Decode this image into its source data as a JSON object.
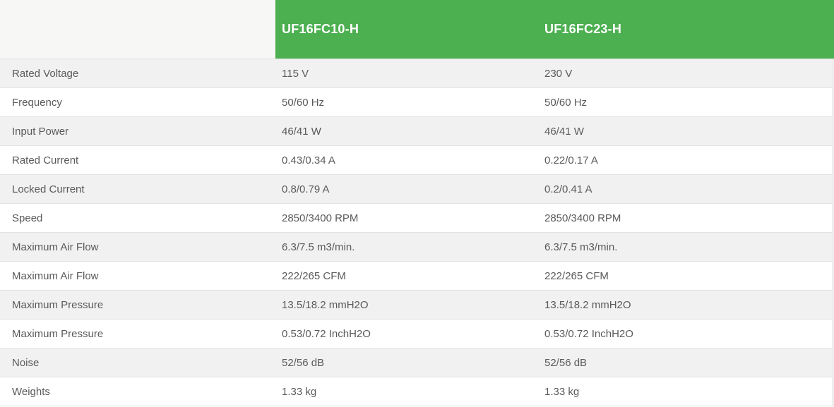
{
  "theme": {
    "header_green": "#4CAF50",
    "header_text_color": "#ffffff",
    "stripe_bg": "#f1f1f1",
    "corner_bg": "#f7f7f6",
    "body_text_color": "#595a5c",
    "divider_color": "#e2e2e2"
  },
  "table": {
    "columns": [
      "",
      "UF16FC10-H",
      "UF16FC23-H"
    ],
    "rows": [
      {
        "label": "Rated Voltage",
        "values": [
          "115 V",
          "230 V"
        ]
      },
      {
        "label": "Frequency",
        "values": [
          "50/60 Hz",
          "50/60 Hz"
        ]
      },
      {
        "label": "Input Power",
        "values": [
          "46/41 W",
          "46/41 W"
        ]
      },
      {
        "label": "Rated Current",
        "values": [
          "0.43/0.34 A",
          "0.22/0.17 A"
        ]
      },
      {
        "label": "Locked Current",
        "values": [
          "0.8/0.79 A",
          "0.2/0.41 A"
        ]
      },
      {
        "label": "Speed",
        "values": [
          "2850/3400 RPM",
          "2850/3400 RPM"
        ]
      },
      {
        "label": "Maximum Air Flow",
        "values": [
          "6.3/7.5 m3/min.",
          "6.3/7.5 m3/min."
        ]
      },
      {
        "label": "Maximum Air Flow",
        "values": [
          "222/265 CFM",
          "222/265 CFM"
        ]
      },
      {
        "label": "Maximum Pressure",
        "values": [
          "13.5/18.2 mmH2O",
          "13.5/18.2 mmH2O"
        ]
      },
      {
        "label": "Maximum Pressure",
        "values": [
          "0.53/0.72 InchH2O",
          "0.53/0.72 InchH2O"
        ]
      },
      {
        "label": "Noise",
        "values": [
          "52/56 dB",
          "52/56 dB"
        ]
      },
      {
        "label": "Weights",
        "values": [
          "1.33 kg",
          "1.33 kg"
        ]
      }
    ]
  }
}
